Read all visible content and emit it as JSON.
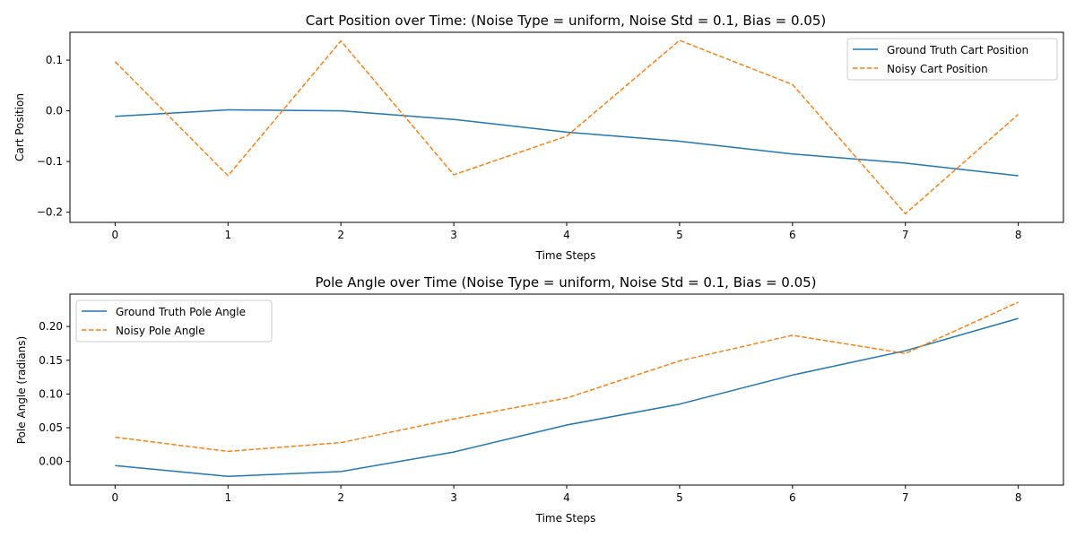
{
  "colors": {
    "ground_truth": "#1f77b4",
    "noisy": "#ff7f0e",
    "axes": "#000000",
    "background": "#ffffff"
  },
  "chart_data": [
    {
      "type": "line",
      "title": "Cart Position over Time: (Noise Type = uniform, Noise Std = 0.1, Bias = 0.05)",
      "xlabel": "Time Steps",
      "ylabel": "Cart Position",
      "x": [
        0,
        1,
        2,
        3,
        4,
        5,
        6,
        7,
        8
      ],
      "xlim": [
        -0.4,
        8.4
      ],
      "ylim": [
        -0.22,
        0.155
      ],
      "xticks": [
        0,
        1,
        2,
        3,
        4,
        5,
        6,
        7,
        8
      ],
      "xtick_labels": [
        "0",
        "1",
        "2",
        "3",
        "4",
        "5",
        "6",
        "7",
        "8"
      ],
      "yticks": [
        -0.2,
        -0.1,
        0.0,
        0.1
      ],
      "ytick_labels": [
        "−0.2",
        "−0.1",
        "0.0",
        "0.1"
      ],
      "grid": false,
      "legend_position": "upper right",
      "series": [
        {
          "name": "Ground Truth Cart Position",
          "style": "solid",
          "color_key": "ground_truth",
          "values": [
            -0.011,
            0.002,
            0.0,
            -0.017,
            -0.042,
            -0.06,
            -0.085,
            -0.103,
            -0.128
          ]
        },
        {
          "name": "Noisy Cart Position",
          "style": "dashed",
          "color_key": "noisy",
          "values": [
            0.097,
            -0.128,
            0.138,
            -0.126,
            -0.05,
            0.139,
            0.052,
            -0.203,
            -0.007
          ]
        }
      ]
    },
    {
      "type": "line",
      "title": "Pole Angle over Time (Noise Type = uniform, Noise Std = 0.1, Bias = 0.05)",
      "xlabel": "Time Steps",
      "ylabel": "Pole Angle (radians)",
      "x": [
        0,
        1,
        2,
        3,
        4,
        5,
        6,
        7,
        8
      ],
      "xlim": [
        -0.4,
        8.4
      ],
      "ylim": [
        -0.035,
        0.248
      ],
      "xticks": [
        0,
        1,
        2,
        3,
        4,
        5,
        6,
        7,
        8
      ],
      "xtick_labels": [
        "0",
        "1",
        "2",
        "3",
        "4",
        "5",
        "6",
        "7",
        "8"
      ],
      "yticks": [
        0.0,
        0.05,
        0.1,
        0.15,
        0.2
      ],
      "ytick_labels": [
        "0.00",
        "0.05",
        "0.10",
        "0.15",
        "0.20"
      ],
      "grid": false,
      "legend_position": "upper left",
      "series": [
        {
          "name": "Ground Truth Pole Angle",
          "style": "solid",
          "color_key": "ground_truth",
          "values": [
            -0.006,
            -0.022,
            -0.015,
            0.014,
            0.054,
            0.085,
            0.128,
            0.164,
            0.212
          ]
        },
        {
          "name": "Noisy Pole Angle",
          "style": "dashed",
          "color_key": "noisy",
          "values": [
            0.036,
            0.015,
            0.028,
            0.063,
            0.094,
            0.149,
            0.187,
            0.16,
            0.236
          ]
        }
      ]
    }
  ]
}
